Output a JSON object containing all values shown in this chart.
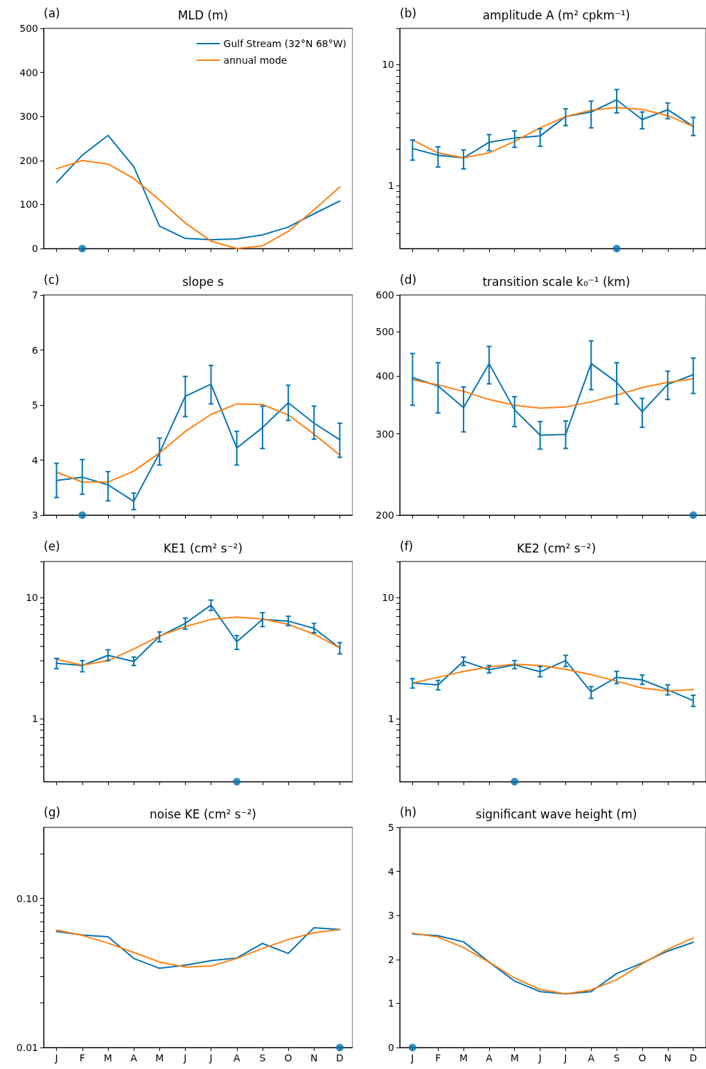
{
  "chart_data": [
    {
      "type": "line",
      "title": "MLD (m)",
      "annotations": [
        "(a)"
      ],
      "categories": [
        null,
        null,
        null,
        null,
        null,
        null,
        null,
        null,
        null,
        null,
        null,
        null
      ],
      "ylim": [
        0,
        500
      ],
      "yticks": [
        0,
        100,
        200,
        300,
        400,
        500
      ],
      "tick_labels": "y",
      "legend": "top right",
      "marker": "none",
      "series": [
        {
          "name": "Gulf Stream (32°N 68°W)",
          "color": "#0173b2",
          "values": [
            150,
            212,
            257,
            186,
            51,
            23,
            20,
            22,
            31,
            49,
            79,
            108
          ]
        },
        {
          "name": "annual mode",
          "color": "#ff7f0e",
          "values": [
            181,
            200,
            192,
            159,
            110,
            58,
            17,
            0,
            6,
            39,
            88,
            140
          ]
        },
        {
          "type": "scatter",
          "marker": "circle",
          "color": "#0173b2",
          "values": [
            null,
            0,
            null,
            null,
            null,
            null,
            null,
            null,
            null,
            null,
            null,
            null
          ]
        }
      ]
    },
    {
      "type": "line",
      "title": "amplitude A (m² cpkm⁻¹)",
      "annotations": [
        "(b)"
      ],
      "categories": [
        null,
        null,
        null,
        null,
        null,
        null,
        null,
        null,
        null,
        null,
        null,
        null
      ],
      "log": true,
      "ylim": [
        0.3,
        20
      ],
      "yticks": [
        {
          "value": 0.4,
          "label": null
        },
        {
          "value": 0.5,
          "label": null
        },
        {
          "value": 0.6,
          "label": null
        },
        {
          "value": 0.7,
          "label": null
        },
        {
          "value": 0.8,
          "label": null
        },
        {
          "value": 0.9,
          "label": null
        },
        1,
        {
          "value": 2,
          "label": null
        },
        {
          "value": 3,
          "label": null
        },
        {
          "value": 4,
          "label": null
        },
        {
          "value": 5,
          "label": null
        },
        {
          "value": 6,
          "label": null
        },
        {
          "value": 7,
          "label": null
        },
        {
          "value": 8,
          "label": null
        },
        {
          "value": 9,
          "label": null
        },
        10,
        {
          "value": 20,
          "label": null
        }
      ],
      "tick_labels": "y",
      "marker": "none",
      "series": [
        {
          "color": "#0173b2",
          "values": [
            2.02,
            1.78,
            1.69,
            2.28,
            2.47,
            2.57,
            3.72,
            4.06,
            5.12,
            3.51,
            4.24,
            3.08
          ],
          "errors": [
            [
              1.62,
              2.38
            ],
            [
              1.42,
              2.09
            ],
            [
              1.37,
              1.97
            ],
            [
              1.94,
              2.64
            ],
            [
              2.07,
              2.83
            ],
            [
              2.11,
              2.95
            ],
            [
              3.13,
              4.31
            ],
            [
              3.0,
              4.99
            ],
            [
              3.99,
              6.23
            ],
            [
              2.95,
              4.06
            ],
            [
              3.57,
              4.82
            ],
            [
              2.59,
              3.66
            ]
          ]
        },
        {
          "color": "#ff7f0e",
          "values": [
            2.38,
            1.86,
            1.69,
            1.86,
            2.32,
            3.0,
            3.72,
            4.2,
            4.42,
            4.27,
            3.79,
            3.08
          ]
        },
        {
          "type": "scatter",
          "marker": "circle",
          "color": "#0173b2",
          "values": [
            null,
            null,
            null,
            null,
            null,
            null,
            null,
            null,
            0.3,
            null,
            null,
            null
          ]
        }
      ]
    },
    {
      "type": "line",
      "title": "slope s",
      "annotations": [
        "(c)"
      ],
      "categories": [
        null,
        null,
        null,
        null,
        null,
        null,
        null,
        null,
        null,
        null,
        null,
        null
      ],
      "ylim": [
        3,
        7
      ],
      "yticks": [
        3,
        4,
        5,
        6,
        7
      ],
      "tick_labels": "y",
      "marker": "none",
      "series": [
        {
          "color": "#0173b2",
          "values": [
            3.63,
            3.69,
            3.55,
            3.25,
            4.13,
            5.16,
            5.38,
            4.22,
            4.59,
            5.04,
            4.67,
            4.37
          ],
          "errors": [
            [
              3.32,
              3.94
            ],
            [
              3.38,
              4.01
            ],
            [
              3.26,
              3.79
            ],
            [
              3.1,
              3.4
            ],
            [
              3.91,
              4.4
            ],
            [
              4.79,
              5.52
            ],
            [
              5.02,
              5.72
            ],
            [
              3.91,
              4.52
            ],
            [
              4.21,
              4.98
            ],
            [
              4.72,
              5.36
            ],
            [
              4.38,
              4.98
            ],
            [
              4.05,
              4.67
            ]
          ]
        },
        {
          "color": "#ff7f0e",
          "values": [
            3.78,
            3.6,
            3.6,
            3.8,
            4.13,
            4.52,
            4.83,
            5.02,
            5.01,
            4.82,
            4.47,
            4.09
          ]
        },
        {
          "type": "scatter",
          "marker": "circle",
          "color": "#0173b2",
          "values": [
            null,
            3,
            null,
            null,
            null,
            null,
            null,
            null,
            null,
            null,
            null,
            null
          ]
        }
      ]
    },
    {
      "type": "line",
      "title": "transition scale k₀⁻¹ (km)",
      "annotations": [
        "(d)"
      ],
      "categories": [
        null,
        null,
        null,
        null,
        null,
        null,
        null,
        null,
        null,
        null,
        null,
        null
      ],
      "log": true,
      "ylim": [
        200,
        600
      ],
      "yticks": [
        200,
        300,
        400,
        500,
        600
      ],
      "tick_labels": "y",
      "marker": "none",
      "series": [
        {
          "color": "#0173b2",
          "values": [
            397,
            381,
            342,
            426,
            338,
            298,
            299,
            426,
            388,
            335,
            384,
            403
          ],
          "errors": [
            [
              346,
              448
            ],
            [
              333,
              428
            ],
            [
              303,
              379
            ],
            [
              385,
              464
            ],
            [
              311,
              361
            ],
            [
              278,
              319
            ],
            [
              279,
              320
            ],
            [
              374,
              477
            ],
            [
              348,
              428
            ],
            [
              310,
              358
            ],
            [
              356,
              410
            ],
            [
              367,
              438
            ]
          ]
        },
        {
          "color": "#ff7f0e",
          "values": [
            393,
            383,
            371,
            356,
            346,
            341,
            343,
            352,
            364,
            378,
            388,
            395
          ]
        },
        {
          "type": "scatter",
          "marker": "circle",
          "color": "#0173b2",
          "values": [
            null,
            null,
            null,
            null,
            null,
            null,
            null,
            null,
            null,
            null,
            null,
            200
          ]
        }
      ]
    },
    {
      "type": "line",
      "title": "KE1 (cm² s⁻²)",
      "annotations": [
        "(e)"
      ],
      "categories": [
        null,
        null,
        null,
        null,
        null,
        null,
        null,
        null,
        null,
        null,
        null,
        null
      ],
      "log": true,
      "ylim": [
        0.3,
        20
      ],
      "yticks": [
        {
          "value": 0.4,
          "label": null
        },
        {
          "value": 0.5,
          "label": null
        },
        {
          "value": 0.6,
          "label": null
        },
        {
          "value": 0.7,
          "label": null
        },
        {
          "value": 0.8,
          "label": null
        },
        {
          "value": 0.9,
          "label": null
        },
        1,
        {
          "value": 2,
          "label": null
        },
        {
          "value": 3,
          "label": null
        },
        {
          "value": 4,
          "label": null
        },
        {
          "value": 5,
          "label": null
        },
        {
          "value": 6,
          "label": null
        },
        {
          "value": 7,
          "label": null
        },
        {
          "value": 8,
          "label": null
        },
        {
          "value": 9,
          "label": null
        },
        10,
        {
          "value": 20,
          "label": null
        }
      ],
      "tick_labels": "y",
      "marker": "none",
      "series": [
        {
          "color": "#0173b2",
          "values": [
            2.87,
            2.75,
            3.34,
            2.97,
            4.79,
            6.14,
            8.72,
            4.32,
            6.63,
            6.41,
            5.59,
            3.84
          ],
          "errors": [
            [
              2.59,
              3.15
            ],
            [
              2.44,
              3.02
            ],
            [
              3.02,
              3.71
            ],
            [
              2.75,
              3.23
            ],
            [
              4.32,
              5.22
            ],
            [
              5.5,
              6.8
            ],
            [
              7.87,
              9.58
            ],
            [
              3.74,
              4.87
            ],
            [
              5.78,
              7.54
            ],
            [
              5.89,
              7.04
            ],
            [
              5.13,
              6.14
            ],
            [
              3.43,
              4.25
            ]
          ]
        },
        {
          "color": "#ff7f0e",
          "values": [
            3.1,
            2.77,
            3.02,
            3.77,
            4.83,
            5.78,
            6.63,
            6.92,
            6.69,
            6.04,
            5.0,
            3.84
          ]
        },
        {
          "type": "scatter",
          "marker": "circle",
          "color": "#0173b2",
          "values": [
            null,
            null,
            null,
            null,
            null,
            null,
            null,
            0.3,
            null,
            null,
            null,
            null
          ]
        }
      ]
    },
    {
      "type": "line",
      "title": "KE2 (cm² s⁻²)",
      "annotations": [
        "(f)"
      ],
      "categories": [
        null,
        null,
        null,
        null,
        null,
        null,
        null,
        null,
        null,
        null,
        null,
        null
      ],
      "log": true,
      "ylim": [
        0.3,
        20
      ],
      "yticks": [
        {
          "value": 0.4,
          "label": null
        },
        {
          "value": 0.5,
          "label": null
        },
        {
          "value": 0.6,
          "label": null
        },
        {
          "value": 0.7,
          "label": null
        },
        {
          "value": 0.8,
          "label": null
        },
        {
          "value": 0.9,
          "label": null
        },
        1,
        {
          "value": 2,
          "label": null
        },
        {
          "value": 3,
          "label": null
        },
        {
          "value": 4,
          "label": null
        },
        {
          "value": 5,
          "label": null
        },
        {
          "value": 6,
          "label": null
        },
        {
          "value": 7,
          "label": null
        },
        {
          "value": 8,
          "label": null
        },
        {
          "value": 9,
          "label": null
        },
        10,
        {
          "value": 20,
          "label": null
        }
      ],
      "tick_labels": "y",
      "marker": "none",
      "series": [
        {
          "color": "#0173b2",
          "values": [
            1.97,
            1.9,
            2.99,
            2.54,
            2.79,
            2.44,
            3.02,
            1.66,
            2.2,
            2.09,
            1.73,
            1.41
          ],
          "errors": [
            [
              1.79,
              2.14
            ],
            [
              1.73,
              2.07
            ],
            [
              2.75,
              3.23
            ],
            [
              2.39,
              2.75
            ],
            [
              2.59,
              3.02
            ],
            [
              2.22,
              2.7
            ],
            [
              2.7,
              3.34
            ],
            [
              1.47,
              1.84
            ],
            [
              1.95,
              2.46
            ],
            [
              1.92,
              2.29
            ],
            [
              1.57,
              1.9
            ],
            [
              1.26,
              1.56
            ]
          ]
        },
        {
          "color": "#ff7f0e",
          "values": [
            1.97,
            2.2,
            2.46,
            2.68,
            2.82,
            2.75,
            2.56,
            2.31,
            2.04,
            1.79,
            1.69,
            1.74
          ]
        },
        {
          "type": "scatter",
          "marker": "circle",
          "color": "#0173b2",
          "values": [
            null,
            null,
            null,
            null,
            0.3,
            null,
            null,
            null,
            null,
            null,
            null,
            null
          ]
        }
      ]
    },
    {
      "type": "line",
      "title": "noise KE (cm² s⁻²)",
      "annotations": [
        "(g)"
      ],
      "categories": [
        "J",
        "F",
        "M",
        "A",
        "M",
        "J",
        "J",
        "A",
        "S",
        "O",
        "N",
        "D"
      ],
      "log": true,
      "ylim": [
        0.01,
        0.3
      ],
      "yticks": [
        0.01,
        {
          "value": 0.02,
          "label": null
        },
        {
          "value": 0.03,
          "label": null
        },
        {
          "value": 0.04,
          "label": null
        },
        {
          "value": 0.05,
          "label": null
        },
        {
          "value": 0.06,
          "label": null
        },
        {
          "value": 0.07,
          "label": null
        },
        {
          "value": 0.08,
          "label": null
        },
        {
          "value": 0.09,
          "label": null
        },
        {
          "value": 0.1,
          "label": "0.10"
        },
        {
          "value": 0.2,
          "label": null
        }
      ],
      "marker": "none",
      "series": [
        {
          "color": "#0173b2",
          "values": [
            0.0602,
            0.0569,
            0.0553,
            0.0396,
            0.034,
            0.0357,
            0.0383,
            0.0399,
            0.0499,
            0.0428,
            0.0637,
            0.0619
          ]
        },
        {
          "color": "#ff7f0e",
          "values": [
            0.0615,
            0.0565,
            0.0502,
            0.0434,
            0.0375,
            0.0347,
            0.0352,
            0.0396,
            0.0462,
            0.0531,
            0.0589,
            0.0619
          ]
        },
        {
          "type": "scatter",
          "marker": "circle",
          "color": "#0173b2",
          "values": [
            null,
            null,
            null,
            null,
            null,
            null,
            null,
            null,
            null,
            null,
            null,
            0.01
          ]
        }
      ]
    },
    {
      "type": "line",
      "title": "significant wave height (m)",
      "annotations": [
        "(h)"
      ],
      "categories": [
        "J",
        "F",
        "M",
        "A",
        "M",
        "J",
        "J",
        "A",
        "S",
        "O",
        "N",
        "D"
      ],
      "ylim": [
        0,
        5
      ],
      "yticks": [
        0,
        1,
        2,
        3,
        4,
        5
      ],
      "marker": "none",
      "series": [
        {
          "color": "#0173b2",
          "values": [
            2.58,
            2.54,
            2.4,
            1.94,
            1.51,
            1.27,
            1.22,
            1.27,
            1.68,
            1.92,
            2.19,
            2.39
          ]
        },
        {
          "color": "#ff7f0e",
          "values": [
            2.6,
            2.51,
            2.27,
            1.94,
            1.58,
            1.32,
            1.22,
            1.31,
            1.54,
            1.9,
            2.23,
            2.49
          ]
        },
        {
          "type": "scatter",
          "marker": "circle",
          "color": "#0173b2",
          "values": [
            0,
            null,
            null,
            null,
            null,
            null,
            null,
            null,
            null,
            null,
            null,
            null
          ]
        }
      ]
    }
  ]
}
